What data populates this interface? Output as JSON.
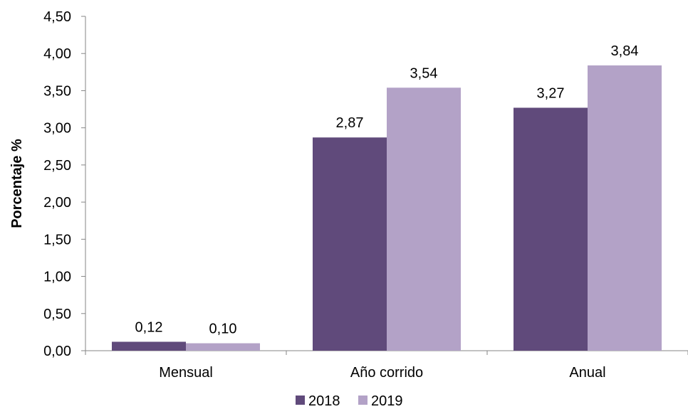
{
  "chart_data": {
    "type": "bar",
    "categories": [
      "Mensual",
      "Año corrido",
      "Anual"
    ],
    "series": [
      {
        "name": "2018",
        "values": [
          0.12,
          2.87,
          3.27
        ],
        "labels": [
          "0,12",
          "2,87",
          "3,27"
        ],
        "color": "#604A7B"
      },
      {
        "name": "2019",
        "values": [
          0.1,
          3.54,
          3.84
        ],
        "labels": [
          "0,10",
          "3,54",
          "3,84"
        ],
        "color": "#B3A2C7"
      }
    ],
    "ylabel": "Porcentaje %",
    "xlabel": "",
    "ylim": [
      0,
      4.5
    ],
    "yticks": [
      0,
      0.5,
      1,
      1.5,
      2,
      2.5,
      3,
      3.5,
      4,
      4.5
    ],
    "ytick_labels": [
      "0,00",
      "0,50",
      "1,00",
      "1,50",
      "2,00",
      "2,50",
      "3,00",
      "3,50",
      "4,00",
      "4,50"
    ],
    "grid": false,
    "legend_position": "bottom"
  }
}
